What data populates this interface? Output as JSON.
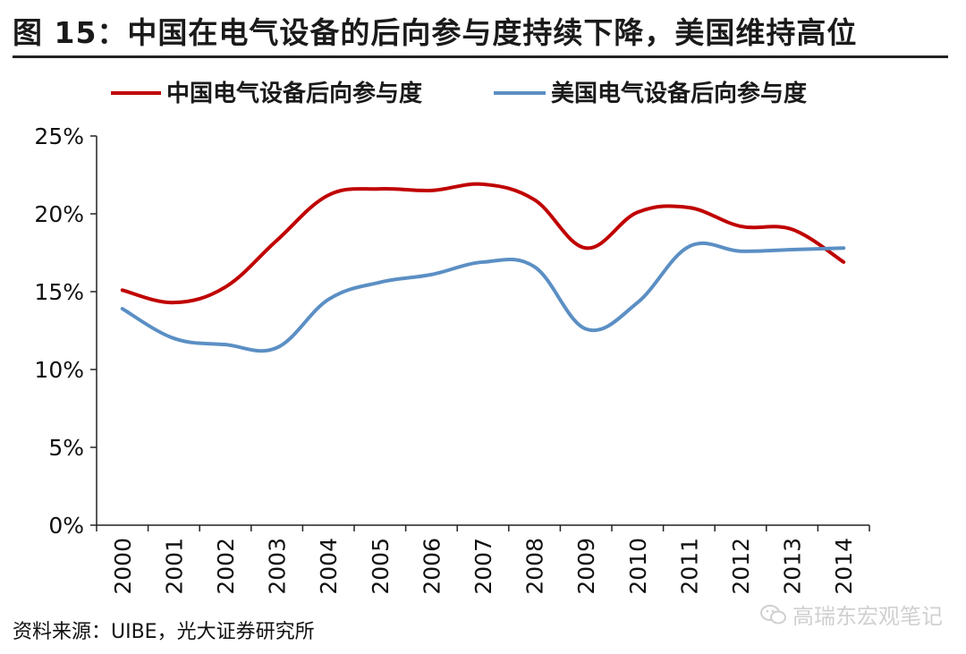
{
  "header": {
    "title": "图 15：中国在电气设备的后向参与度持续下降，美国维持高位"
  },
  "footer": {
    "source": "资料来源：UIBE，光大证券研究所",
    "watermark": "高瑞东宏观笔记",
    "watermark_icon": "wechat-icon"
  },
  "chart_data": {
    "type": "line",
    "title": "",
    "xlabel": "",
    "ylabel": "",
    "x": [
      "2000",
      "2001",
      "2002",
      "2003",
      "2004",
      "2005",
      "2006",
      "2007",
      "2008",
      "2009",
      "2010",
      "2011",
      "2012",
      "2013",
      "2014"
    ],
    "ylim": [
      0,
      25
    ],
    "yticks": [
      "0%",
      "5%",
      "10%",
      "15%",
      "20%",
      "25%"
    ],
    "ytick_values": [
      0,
      5,
      10,
      15,
      20,
      25
    ],
    "grid": false,
    "legend_position": "top",
    "series": [
      {
        "name": "中国电气设备后向参与度",
        "color": "#c00000",
        "values": [
          15.1,
          14.3,
          15.3,
          18.3,
          21.2,
          21.6,
          21.5,
          21.9,
          20.9,
          17.8,
          20.1,
          20.4,
          19.2,
          19.0,
          16.9
        ]
      },
      {
        "name": "美国电气设备后向参与度",
        "color": "#5b8fc4",
        "values": [
          13.9,
          12.0,
          11.6,
          11.4,
          14.5,
          15.6,
          16.1,
          16.9,
          16.6,
          12.6,
          14.3,
          17.9,
          17.6,
          17.7,
          17.8
        ]
      }
    ]
  }
}
